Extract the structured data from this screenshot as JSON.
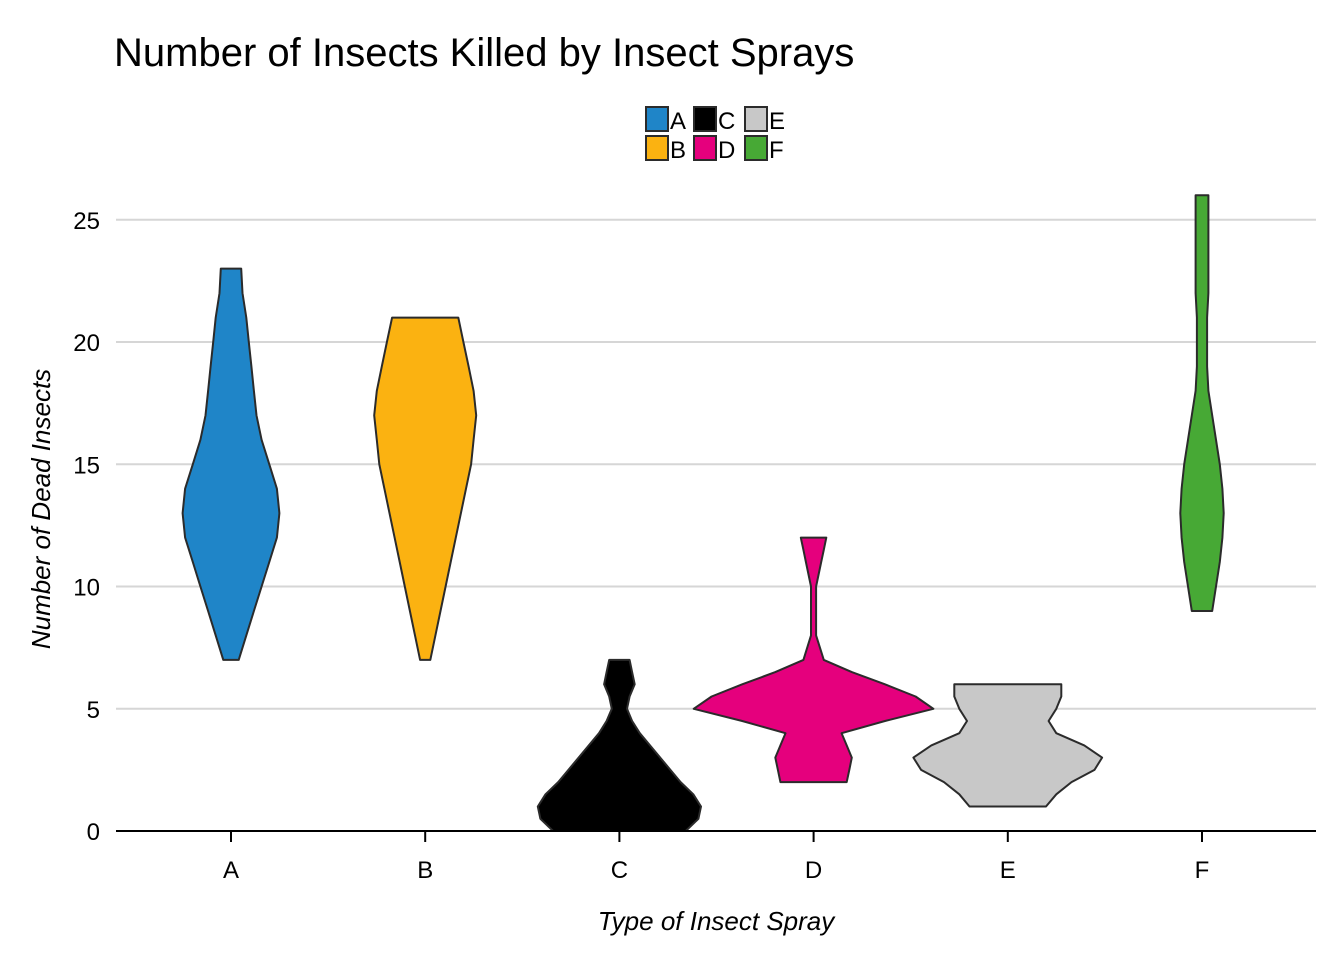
{
  "chart_data": {
    "type": "violin",
    "title": "Number of Insects Killed by Insect Sprays",
    "xlabel": "Type of Insect Spray",
    "ylabel": "Number of Dead Insects",
    "categories": [
      "A",
      "B",
      "C",
      "D",
      "E",
      "F"
    ],
    "ylim": [
      0,
      26
    ],
    "yticks": [
      0,
      5,
      10,
      15,
      20,
      25
    ],
    "grid": "horizontal",
    "legend_position": "top-center",
    "legend": [
      "A",
      "B",
      "C",
      "D",
      "E",
      "F"
    ],
    "colors": {
      "A": "#1f85c8",
      "B": "#fbb211",
      "C": "#000000",
      "D": "#e5007d",
      "E": "#c8c8c8",
      "F": "#47a935"
    },
    "series": [
      {
        "name": "A",
        "min": 7,
        "max": 23,
        "profile": [
          [
            7,
            0.03
          ],
          [
            8,
            0.06
          ],
          [
            9,
            0.09
          ],
          [
            10,
            0.12
          ],
          [
            11,
            0.15
          ],
          [
            12,
            0.18
          ],
          [
            13,
            0.19
          ],
          [
            14,
            0.18
          ],
          [
            15,
            0.15
          ],
          [
            16,
            0.12
          ],
          [
            17,
            0.1
          ],
          [
            18,
            0.09
          ],
          [
            19,
            0.08
          ],
          [
            20,
            0.07
          ],
          [
            21,
            0.06
          ],
          [
            22,
            0.045
          ],
          [
            23,
            0.04
          ]
        ]
      },
      {
        "name": "B",
        "min": 7,
        "max": 21,
        "profile": [
          [
            7,
            0.02
          ],
          [
            8,
            0.04
          ],
          [
            9,
            0.06
          ],
          [
            10,
            0.08
          ],
          [
            11,
            0.1
          ],
          [
            12,
            0.12
          ],
          [
            13,
            0.14
          ],
          [
            14,
            0.16
          ],
          [
            15,
            0.18
          ],
          [
            16,
            0.19
          ],
          [
            17,
            0.2
          ],
          [
            18,
            0.19
          ],
          [
            19,
            0.17
          ],
          [
            20,
            0.15
          ],
          [
            21,
            0.13
          ]
        ]
      },
      {
        "name": "C",
        "min": 0,
        "max": 7,
        "profile": [
          [
            0,
            0.26
          ],
          [
            0.5,
            0.31
          ],
          [
            1,
            0.32
          ],
          [
            1.5,
            0.29
          ],
          [
            2,
            0.24
          ],
          [
            2.5,
            0.2
          ],
          [
            3,
            0.16
          ],
          [
            3.5,
            0.12
          ],
          [
            4,
            0.08
          ],
          [
            4.5,
            0.05
          ],
          [
            5,
            0.03
          ],
          [
            5.5,
            0.04
          ],
          [
            6,
            0.06
          ],
          [
            6.5,
            0.05
          ],
          [
            7,
            0.04
          ]
        ]
      },
      {
        "name": "D",
        "min": 2,
        "max": 12,
        "profile": [
          [
            2,
            0.13
          ],
          [
            2.5,
            0.14
          ],
          [
            3,
            0.15
          ],
          [
            3.5,
            0.13
          ],
          [
            4,
            0.11
          ],
          [
            4.5,
            0.28
          ],
          [
            5,
            0.47
          ],
          [
            5.5,
            0.4
          ],
          [
            6,
            0.28
          ],
          [
            6.5,
            0.15
          ],
          [
            7,
            0.04
          ],
          [
            8,
            0.01
          ],
          [
            9,
            0.01
          ],
          [
            10,
            0.01
          ],
          [
            11,
            0.03
          ],
          [
            11.5,
            0.04
          ],
          [
            12,
            0.05
          ]
        ]
      },
      {
        "name": "E",
        "min": 1,
        "max": 6,
        "profile": [
          [
            1,
            0.15
          ],
          [
            1.5,
            0.19
          ],
          [
            2,
            0.25
          ],
          [
            2.5,
            0.34
          ],
          [
            3,
            0.37
          ],
          [
            3.5,
            0.3
          ],
          [
            4,
            0.19
          ],
          [
            4.5,
            0.16
          ],
          [
            5,
            0.19
          ],
          [
            5.5,
            0.21
          ],
          [
            6,
            0.21
          ]
        ]
      },
      {
        "name": "F",
        "min": 9,
        "max": 26,
        "profile": [
          [
            9,
            0.04
          ],
          [
            10,
            0.055
          ],
          [
            11,
            0.07
          ],
          [
            12,
            0.08
          ],
          [
            13,
            0.085
          ],
          [
            14,
            0.08
          ],
          [
            15,
            0.07
          ],
          [
            16,
            0.055
          ],
          [
            17,
            0.04
          ],
          [
            18,
            0.025
          ],
          [
            19,
            0.02
          ],
          [
            20,
            0.02
          ],
          [
            21,
            0.02
          ],
          [
            22,
            0.025
          ],
          [
            23,
            0.025
          ],
          [
            24,
            0.025
          ],
          [
            25,
            0.025
          ],
          [
            26,
            0.025
          ]
        ]
      }
    ]
  }
}
